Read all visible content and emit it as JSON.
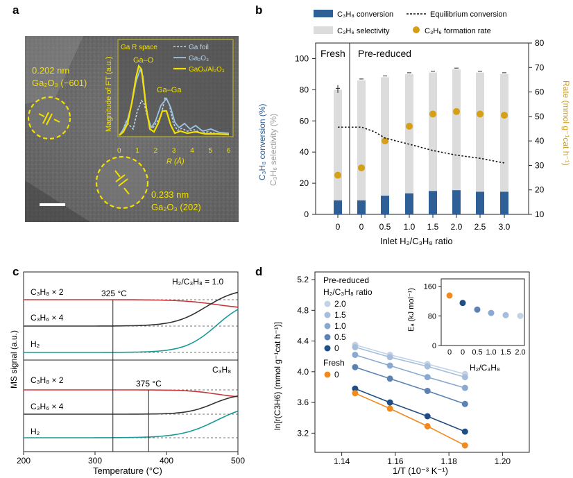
{
  "panels": {
    "a": {
      "label": "a",
      "ann1_line1": "0.202 nm",
      "ann1_line2": "Ga₂O₃ (−601)",
      "ann2_line1": "0.233 nm",
      "ann2_line2": "Ga₂O₃ (202)",
      "inset": {
        "title": "Ga  R space",
        "ylabel": "Magnitude of FT (a.u.)",
        "xlabel": "R (Å)",
        "xticks": [
          "0",
          "1",
          "2",
          "3",
          "4",
          "5",
          "6"
        ],
        "peak_labels": [
          "Ga–O",
          "Ga–Ga"
        ],
        "legend": [
          "Ga foil",
          "Ga₂O₃",
          "GaOₓ/Al₂O₃"
        ],
        "colors": {
          "foil": "#a7c8e4",
          "ga2o3": "#9cc3e6",
          "gaox": "#f2e000"
        }
      }
    },
    "b": {
      "label": "b",
      "legend": [
        "C₃H₈ conversion",
        "Equilibrium conversion",
        "C₃H₆ selectivity",
        "C₃H₆ formation rate"
      ],
      "group_labels": [
        "Fresh",
        "Pre-reduced"
      ],
      "yleft_label1": "C₃H₈ conversion (%)",
      "yleft_label2": "C₃H₆ selectivity (%)",
      "yright_label": "Rate (mmol g⁻¹cat h⁻¹)",
      "xlabel": "Inlet H₂/C₃H₈ ratio",
      "yticks_left": [
        "0",
        "20",
        "40",
        "60",
        "80",
        "100"
      ],
      "yticks_right": [
        "10",
        "20",
        "30",
        "40",
        "50",
        "60",
        "70",
        "80"
      ]
    },
    "c": {
      "label": "c",
      "top_title": "H₂/C₃H₈ = 1.0",
      "bottom_title": "C₃H₈",
      "trace_labels_top": [
        "C₃H₈ × 2",
        "C₃H₆ × 4",
        "H₂"
      ],
      "trace_labels_bottom": [
        "C₃H₈ × 2",
        "C₃H₆ × 4",
        "H₂"
      ],
      "marker_top": "325 °C",
      "marker_bottom": "375 °C",
      "ylabel": "MS signal (a.u.)",
      "xlabel": "Temperature (°C)",
      "xticks": [
        "200",
        "300",
        "400",
        "500"
      ],
      "colors": {
        "c3h8": "#c8383a",
        "c3h6": "#333333",
        "h2": "#1a9a96"
      }
    },
    "d": {
      "label": "d",
      "legend_title1": "Pre-reduced",
      "legend_title2": "H₂/C₃H₈ ratio",
      "legend_items": [
        "2.0",
        "1.5",
        "1.0",
        "0.5",
        "0"
      ],
      "legend_fresh_title": "Fresh",
      "legend_fresh_item": "0",
      "ylabel": "ln[r(C3H6) (mmol g⁻¹cat h⁻¹)]",
      "xlabel": "1/T (10⁻³ K⁻¹)",
      "xticks": [
        "1.14",
        "1.16",
        "1.18",
        "1.20"
      ],
      "yticks": [
        "3.2",
        "3.6",
        "4.0",
        "4.4",
        "4.8",
        "5.2"
      ],
      "inset": {
        "ylabel": "Eₐ (kJ mol⁻¹)",
        "xlabel": "H₂/C₃H₈",
        "xticks": [
          "0",
          "0",
          "0.5",
          "1.0",
          "1.5",
          "2.0"
        ],
        "yticks": [
          "0",
          "80",
          "160"
        ]
      }
    }
  },
  "chart_data": [
    {
      "panel": "b",
      "type": "bar",
      "categories": [
        "0",
        "0",
        "0.5",
        "1.0",
        "1.5",
        "2.0",
        "2.5",
        "3.0"
      ],
      "groups": [
        "Fresh",
        "Pre-reduced",
        "Pre-reduced",
        "Pre-reduced",
        "Pre-reduced",
        "Pre-reduced",
        "Pre-reduced",
        "Pre-reduced"
      ],
      "series": [
        {
          "name": "C₃H₆ selectivity",
          "axis": "left",
          "color": "#dcdcdc",
          "values": [
            80,
            86,
            88,
            90,
            91,
            93,
            91,
            90
          ]
        },
        {
          "name": "C₃H₈ conversion",
          "axis": "left",
          "color": "#2e5f96",
          "values": [
            9,
            9,
            12,
            13.5,
            15,
            15.5,
            14.5,
            14.5
          ]
        },
        {
          "name": "Equilibrium conversion",
          "axis": "left",
          "type": "line",
          "values": [
            null,
            null,
            58,
            53,
            47,
            41,
            38,
            35
          ],
          "note": "dotted line from x=0(Fresh) at ~56"
        },
        {
          "name": "C₃H₆ formation rate",
          "axis": "right",
          "color": "#d4a017",
          "values": [
            26,
            29,
            40,
            46,
            51,
            52,
            51,
            50.5
          ]
        }
      ],
      "ylim_left": [
        0,
        110
      ],
      "ylim_right": [
        10,
        80
      ]
    },
    {
      "panel": "d",
      "type": "scatter",
      "x": [
        1.145,
        1.158,
        1.172,
        1.186
      ],
      "series": [
        {
          "name": "2.0",
          "color": "#c2d3e6",
          "values": [
            4.35,
            4.22,
            4.1,
            3.97
          ]
        },
        {
          "name": "1.5",
          "color": "#a6bedc",
          "values": [
            4.32,
            4.19,
            4.07,
            3.93
          ]
        },
        {
          "name": "1.0",
          "color": "#8aa9d1",
          "values": [
            4.22,
            4.08,
            3.93,
            3.79
          ]
        },
        {
          "name": "0.5",
          "color": "#5b82b3",
          "values": [
            4.06,
            3.91,
            3.75,
            3.58
          ]
        },
        {
          "name": "0 (pre-reduced)",
          "color": "#1e4e83",
          "values": [
            3.78,
            3.6,
            3.42,
            3.22
          ]
        },
        {
          "name": "0 (fresh)",
          "color": "#f08a1e",
          "values": [
            3.72,
            3.52,
            3.29,
            3.04
          ]
        }
      ],
      "xlim": [
        1.13,
        1.21
      ],
      "ylim": [
        2.95,
        5.3
      ]
    },
    {
      "panel": "d-inset",
      "type": "scatter",
      "categories": [
        "0 fresh",
        "0",
        "0.5",
        "1.0",
        "1.5",
        "2.0"
      ],
      "values": [
        135,
        115,
        97,
        88,
        82,
        80
      ],
      "ylim": [
        0,
        180
      ]
    }
  ]
}
